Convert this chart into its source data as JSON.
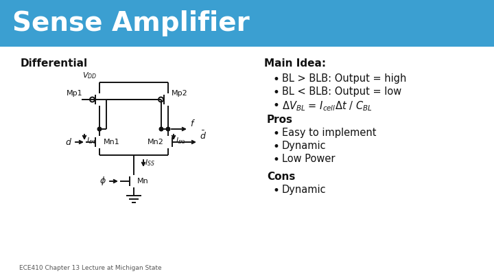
{
  "title": "Sense Amplifier",
  "title_bg_color": "#3B9FD1",
  "title_text_color": "#FFFFFF",
  "content_bg_color": "#FFFFFF",
  "left_label": "Differential",
  "right_title": "Main Idea:",
  "bullets_main": [
    "BL > BLB: Output = high",
    "BL < BLB: Output = low"
  ],
  "bullet_math": "\\Delta V_{BL} = I_{cell}\\Delta t\\,/\\,C_{BL}",
  "pros_title": "Pros",
  "bullets_pros": [
    "Easy to implement",
    "Dynamic",
    "Low Power"
  ],
  "cons_title": "Cons",
  "bullets_cons": [
    "Dynamic"
  ],
  "footer": "ECE410 Chapter 13 Lecture at Michigan State",
  "lc": "#111111",
  "lw": 1.4
}
